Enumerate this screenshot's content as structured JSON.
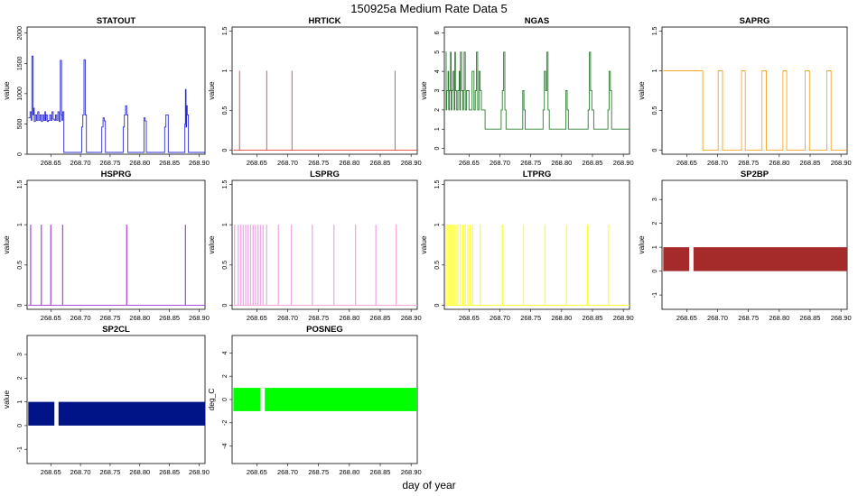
{
  "figure": {
    "title": "150925a   Medium Rate Data 5",
    "xlabel": "day of year"
  },
  "chart_data": [
    {
      "type": "line",
      "title": "STATOUT",
      "ylabel": "value",
      "color": "#2b2bd6",
      "style": "line",
      "xlim": [
        268.61,
        268.91
      ],
      "ylim": [
        0,
        2100
      ],
      "yticks": [
        0,
        500,
        1000,
        1500,
        2000
      ],
      "xticks": [
        268.65,
        268.7,
        268.75,
        268.8,
        268.85,
        268.9
      ],
      "xtick_labels": [
        "268.65",
        "268.70",
        "268.75",
        "268.80",
        "268.85",
        "268.90"
      ],
      "x": [
        268.612,
        268.615,
        268.617,
        268.618,
        268.62,
        268.621,
        268.622,
        268.624,
        268.626,
        268.628,
        268.63,
        268.632,
        268.634,
        268.636,
        268.638,
        268.64,
        268.641,
        268.642,
        268.644,
        268.646,
        268.648,
        268.65,
        268.652,
        268.654,
        268.656,
        268.658,
        268.66,
        268.662,
        268.664,
        268.666,
        268.668,
        268.669,
        268.67,
        268.672,
        268.674,
        268.676,
        268.678,
        268.69,
        268.7,
        268.702,
        268.704,
        268.706,
        268.708,
        268.71,
        268.72,
        268.735,
        268.736,
        268.738,
        268.74,
        268.742,
        268.744,
        268.76,
        268.77,
        268.772,
        268.774,
        268.776,
        268.778,
        268.78,
        268.795,
        268.805,
        268.807,
        268.809,
        268.811,
        268.813,
        268.83,
        268.84,
        268.842,
        268.844,
        268.846,
        268.848,
        268.85,
        268.865,
        268.875,
        268.876,
        268.877,
        268.878,
        268.879,
        268.88,
        268.882,
        268.884,
        268.886,
        268.89,
        268.9,
        268.91
      ],
      "y": [
        600,
        700,
        560,
        1620,
        650,
        760,
        540,
        650,
        560,
        700,
        560,
        650,
        540,
        650,
        560,
        700,
        560,
        650,
        540,
        560,
        650,
        560,
        700,
        580,
        560,
        650,
        560,
        700,
        540,
        1550,
        650,
        560,
        700,
        30,
        30,
        30,
        30,
        30,
        30,
        450,
        650,
        1560,
        650,
        30,
        30,
        30,
        450,
        600,
        550,
        30,
        30,
        30,
        30,
        450,
        650,
        800,
        650,
        30,
        30,
        30,
        600,
        550,
        30,
        30,
        30,
        30,
        450,
        650,
        650,
        30,
        30,
        30,
        30,
        500,
        1070,
        450,
        800,
        650,
        30,
        30,
        30,
        30,
        30,
        30
      ]
    },
    {
      "type": "line",
      "title": "HRTICK",
      "ylabel": "value",
      "color": "#e0443e",
      "style": "line",
      "xlim": [
        268.61,
        268.91
      ],
      "ylim": [
        -0.05,
        1.55
      ],
      "yticks": [
        0,
        0.5,
        1.0,
        1.5
      ],
      "xticks": [
        268.65,
        268.7,
        268.75,
        268.8,
        268.85,
        268.9
      ],
      "xtick_labels": [
        "268.65",
        "268.70",
        "268.75",
        "268.80",
        "268.85",
        "268.90"
      ],
      "x": [
        268.612,
        268.622,
        268.622,
        268.622,
        268.666,
        268.666,
        268.666,
        268.707,
        268.707,
        268.707,
        268.874,
        268.874,
        268.874,
        268.91
      ],
      "y": [
        0,
        0,
        1,
        0,
        0,
        1,
        0,
        0,
        1,
        0,
        0,
        1,
        0,
        0
      ]
    },
    {
      "type": "line",
      "title": "NGAS",
      "ylabel": "value",
      "color": "#2e7d32",
      "style": "line",
      "xlim": [
        268.61,
        268.91
      ],
      "ylim": [
        -0.3,
        6.3
      ],
      "yticks": [
        0,
        1,
        2,
        3,
        4,
        5,
        6
      ],
      "xticks": [
        268.65,
        268.7,
        268.75,
        268.8,
        268.85,
        268.9
      ],
      "xtick_labels": [
        "268.65",
        "268.70",
        "268.75",
        "268.80",
        "268.85",
        "268.90"
      ],
      "x": [
        268.612,
        268.613,
        268.614,
        268.616,
        268.617,
        268.618,
        268.62,
        268.621,
        268.622,
        268.624,
        268.626,
        268.627,
        268.628,
        268.63,
        268.632,
        268.634,
        268.635,
        268.636,
        268.638,
        268.64,
        268.641,
        268.642,
        268.644,
        268.646,
        268.648,
        268.65,
        268.655,
        268.658,
        268.66,
        268.662,
        268.664,
        268.666,
        268.668,
        268.67,
        268.672,
        268.676,
        268.68,
        268.69,
        268.7,
        268.702,
        268.704,
        268.706,
        268.708,
        268.71,
        268.72,
        268.735,
        268.737,
        268.739,
        268.741,
        268.745,
        268.765,
        268.77,
        268.772,
        268.774,
        268.776,
        268.778,
        268.78,
        268.8,
        268.805,
        268.807,
        268.809,
        268.811,
        268.815,
        268.84,
        268.843,
        268.845,
        268.847,
        268.849,
        268.852,
        268.87,
        268.875,
        268.877,
        268.879,
        268.881,
        268.885,
        268.9,
        268.91
      ],
      "y": [
        5,
        2,
        3,
        4,
        2,
        3,
        5,
        2,
        3,
        4,
        2,
        5,
        3,
        2,
        3,
        4,
        2,
        5,
        3,
        2,
        3,
        5,
        2,
        3,
        3,
        2,
        4,
        2,
        3,
        5,
        2,
        4,
        3,
        2,
        2,
        1,
        1,
        1,
        1,
        2,
        3,
        5,
        2,
        1,
        1,
        1,
        3,
        2,
        1,
        1,
        1,
        2,
        4,
        3,
        5,
        2,
        1,
        1,
        1,
        3,
        2,
        1,
        1,
        1,
        2,
        5,
        3,
        2,
        1,
        1,
        2,
        4,
        3,
        1,
        1,
        1,
        1
      ]
    },
    {
      "type": "line",
      "title": "SAPRG",
      "ylabel": "value",
      "color": "#f5a623",
      "style": "line",
      "xlim": [
        268.61,
        268.91
      ],
      "ylim": [
        -0.05,
        1.55
      ],
      "yticks": [
        0,
        0.5,
        1.0,
        1.5
      ],
      "xticks": [
        268.65,
        268.7,
        268.75,
        268.8,
        268.85,
        268.9
      ],
      "xtick_labels": [
        "268.65",
        "268.70",
        "268.75",
        "268.80",
        "268.85",
        "268.90"
      ],
      "x": [
        268.612,
        268.676,
        268.676,
        268.701,
        268.701,
        268.708,
        268.708,
        268.739,
        268.739,
        268.745,
        268.745,
        268.772,
        268.772,
        268.779,
        268.779,
        268.806,
        268.806,
        268.812,
        268.812,
        268.842,
        268.842,
        268.849,
        268.849,
        268.877,
        268.877,
        268.884,
        268.884,
        268.91
      ],
      "y": [
        1,
        1,
        0,
        0,
        1,
        1,
        0,
        0,
        1,
        1,
        0,
        0,
        1,
        1,
        0,
        0,
        1,
        1,
        0,
        0,
        1,
        1,
        0,
        0,
        1,
        1,
        0,
        0
      ]
    },
    {
      "type": "line",
      "title": "HSPRG",
      "ylabel": "value",
      "color": "#a94ee6",
      "style": "spikes",
      "xlim": [
        268.61,
        268.91
      ],
      "ylim": [
        -0.05,
        1.55
      ],
      "yticks": [
        0,
        0.5,
        1.0,
        1.5
      ],
      "xticks": [
        268.65,
        268.7,
        268.75,
        268.8,
        268.85,
        268.9
      ],
      "xtick_labels": [
        "268.65",
        "268.70",
        "268.75",
        "268.80",
        "268.85",
        "268.90"
      ],
      "x": [
        268.616,
        268.634,
        268.65,
        268.67,
        268.778,
        268.877
      ],
      "y": [
        1,
        1,
        1,
        1,
        1,
        1
      ],
      "baseline": 0,
      "xend": 268.91
    },
    {
      "type": "line",
      "title": "LSPRG",
      "ylabel": "value",
      "color": "#f0a8e6",
      "style": "spikes",
      "xlim": [
        268.61,
        268.91
      ],
      "ylim": [
        -0.05,
        1.55
      ],
      "yticks": [
        0,
        0.5,
        1.0,
        1.5
      ],
      "xticks": [
        268.65,
        268.7,
        268.75,
        268.8,
        268.85,
        268.9
      ],
      "xtick_labels": [
        "268.65",
        "268.70",
        "268.75",
        "268.80",
        "268.85",
        "268.90"
      ],
      "x": [
        268.614,
        268.62,
        268.624,
        268.628,
        268.632,
        268.636,
        268.64,
        268.644,
        268.648,
        268.652,
        268.656,
        268.66,
        268.666,
        268.685,
        268.706,
        268.74,
        268.775,
        268.81,
        268.843,
        268.876
      ],
      "y": [
        1,
        1,
        1,
        1,
        1,
        1,
        1,
        1,
        1,
        1,
        1,
        1,
        1,
        1,
        1,
        1,
        1,
        1,
        1,
        1
      ],
      "baseline": 0,
      "xend": 268.91
    },
    {
      "type": "line",
      "title": "LTPRG",
      "ylabel": "value",
      "color": "#ffff33",
      "style": "spikes",
      "xlim": [
        268.61,
        268.91
      ],
      "ylim": [
        -0.05,
        1.55
      ],
      "yticks": [
        0,
        0.5,
        1.0,
        1.5
      ],
      "xticks": [
        268.65,
        268.7,
        268.75,
        268.8,
        268.85,
        268.9
      ],
      "xtick_labels": [
        "268.65",
        "268.70",
        "268.75",
        "268.80",
        "268.85",
        "268.90"
      ],
      "x": [
        268.613,
        268.616,
        268.619,
        268.622,
        268.626,
        268.629,
        268.632,
        268.636,
        268.64,
        268.644,
        268.648,
        268.652,
        268.656,
        268.668,
        268.704,
        268.738,
        268.773,
        268.808,
        268.842,
        268.876
      ],
      "y": [
        1,
        1,
        1,
        1,
        1,
        1,
        1,
        1,
        1,
        1,
        1,
        1,
        1,
        1,
        1,
        1,
        1,
        1,
        1,
        1
      ],
      "baseline": 0,
      "xend": 268.91
    },
    {
      "type": "area",
      "title": "SP2BP",
      "ylabel": "value",
      "color": "#a52a2a",
      "style": "band",
      "xlim": [
        268.61,
        268.91
      ],
      "ylim": [
        -1.6,
        3.8
      ],
      "yticks": [
        -1,
        0,
        1,
        2,
        3
      ],
      "xticks": [
        268.65,
        268.7,
        268.75,
        268.8,
        268.85,
        268.9
      ],
      "xtick_labels": [
        "268.65",
        "268.70",
        "268.75",
        "268.80",
        "268.85",
        "268.90"
      ],
      "bands": [
        {
          "x0": 268.612,
          "x1": 268.654,
          "low": 0,
          "high": 1
        },
        {
          "x0": 268.661,
          "x1": 268.91,
          "low": 0,
          "high": 1
        }
      ]
    },
    {
      "type": "area",
      "title": "SP2CL",
      "ylabel": "value",
      "color": "#001487",
      "style": "band",
      "xlim": [
        268.61,
        268.91
      ],
      "ylim": [
        -1.6,
        3.8
      ],
      "yticks": [
        -1,
        0,
        1,
        2,
        3
      ],
      "xticks": [
        268.65,
        268.7,
        268.75,
        268.8,
        268.85,
        268.9
      ],
      "xtick_labels": [
        "268.65",
        "268.70",
        "268.75",
        "268.80",
        "268.85",
        "268.90"
      ],
      "bands": [
        {
          "x0": 268.612,
          "x1": 268.656,
          "low": 0,
          "high": 1
        },
        {
          "x0": 268.663,
          "x1": 268.91,
          "low": 0,
          "high": 1
        }
      ]
    },
    {
      "type": "area",
      "title": "POSNEG",
      "ylabel": "deg_C",
      "color": "#00ff00",
      "style": "band",
      "xlim": [
        268.61,
        268.91
      ],
      "ylim": [
        -5.5,
        5.5
      ],
      "yticks": [
        -4,
        -2,
        0,
        2,
        4
      ],
      "xticks": [
        268.65,
        268.7,
        268.75,
        268.8,
        268.85,
        268.9
      ],
      "xtick_labels": [
        "268.65",
        "268.70",
        "268.75",
        "268.80",
        "268.85",
        "268.90"
      ],
      "bands": [
        {
          "x0": 268.612,
          "x1": 268.656,
          "low": -1,
          "high": 1
        },
        {
          "x0": 268.663,
          "x1": 268.91,
          "low": -1,
          "high": 1
        }
      ]
    }
  ]
}
